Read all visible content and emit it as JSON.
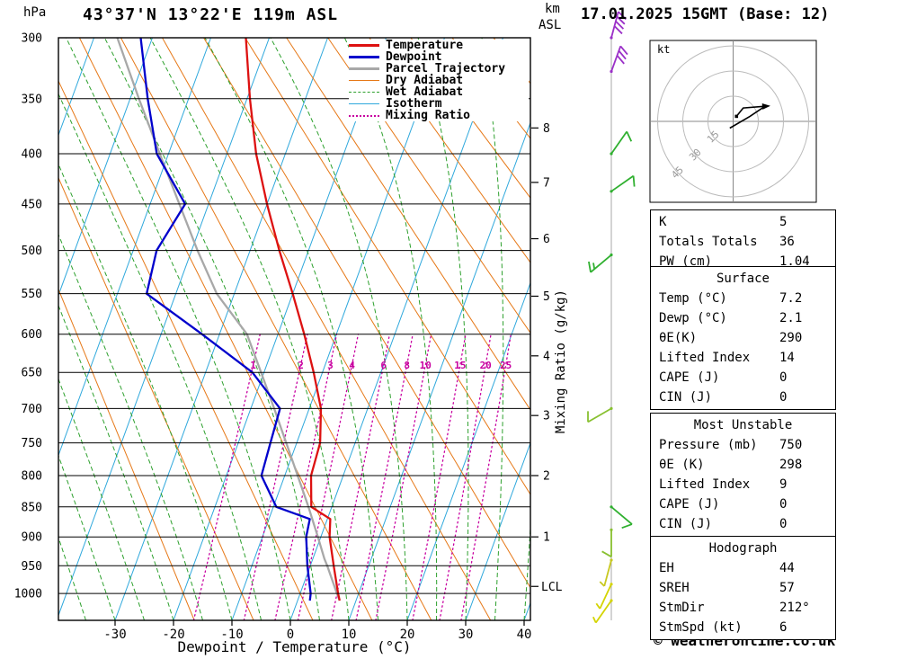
{
  "page_title": "43°37'N 13°22'E 119m ASL",
  "datetime": "17.01.2025 15GMT (Base: 12)",
  "footer": "© weatheronline.co.uk",
  "axes": {
    "pressure_unit": "hPa",
    "alt_unit_km": "km",
    "alt_unit_asl": "ASL",
    "xlabel": "Dewpoint / Temperature (°C)",
    "right_axis_label": "Mixing Ratio (g/kg)",
    "pressure_ticks_hpa": [
      300,
      350,
      400,
      450,
      500,
      550,
      600,
      650,
      700,
      750,
      800,
      850,
      900,
      950,
      1000
    ],
    "temp_ticks_c": [
      -30,
      -20,
      -10,
      0,
      10,
      20,
      30,
      40
    ],
    "km_ticks": [
      {
        "km": "8",
        "p": 376
      },
      {
        "km": "7",
        "p": 428
      },
      {
        "km": "6",
        "p": 487
      },
      {
        "km": "5",
        "p": 553
      },
      {
        "km": "4",
        "p": 628
      },
      {
        "km": "3",
        "p": 710
      },
      {
        "km": "2",
        "p": 800
      },
      {
        "km": "1",
        "p": 900
      }
    ],
    "lcl": {
      "label": "LCL",
      "p": 987
    }
  },
  "legend": [
    {
      "label": "Temperature",
      "color": "#dd1111",
      "style": "solid",
      "weight": 3
    },
    {
      "label": "Dewpoint",
      "color": "#0000cc",
      "style": "solid",
      "weight": 3
    },
    {
      "label": "Parcel Trajectory",
      "color": "#a8a8a8",
      "style": "solid",
      "weight": 3
    },
    {
      "label": "Dry Adiabat",
      "color": "#e67817",
      "style": "solid",
      "weight": 1
    },
    {
      "label": "Wet Adiabat",
      "color": "#2da02d",
      "style": "dashed",
      "weight": 1
    },
    {
      "label": "Isotherm",
      "color": "#2fa8dc",
      "style": "solid",
      "weight": 1
    },
    {
      "label": "Mixing Ratio",
      "color": "#c800a0",
      "style": "dotted",
      "weight": 2
    }
  ],
  "chart_data": {
    "type": "skewt_sounding",
    "title": "43°37'N 13°22'E 119m ASL",
    "valid": "17.01.2025 15GMT (Base: 12)",
    "pressure_axis_range_hpa": [
      300,
      1050
    ],
    "temp_axis_range_c": [
      -40,
      40
    ],
    "series": [
      {
        "name": "Temperature",
        "color": "#dd1111",
        "points_p_c": [
          [
            1013,
            7.2
          ],
          [
            1000,
            6.5
          ],
          [
            950,
            4
          ],
          [
            900,
            1.5
          ],
          [
            870,
            0.5
          ],
          [
            850,
            -3.5
          ],
          [
            800,
            -5.5
          ],
          [
            750,
            -6
          ],
          [
            700,
            -8
          ],
          [
            650,
            -11.5
          ],
          [
            600,
            -15.5
          ],
          [
            550,
            -20
          ],
          [
            500,
            -25
          ],
          [
            450,
            -30
          ],
          [
            400,
            -35
          ],
          [
            350,
            -39.5
          ],
          [
            300,
            -44
          ]
        ]
      },
      {
        "name": "Dewpoint",
        "color": "#0000cc",
        "points_p_c": [
          [
            1013,
            2.1
          ],
          [
            1000,
            1.8
          ],
          [
            950,
            -0.5
          ],
          [
            900,
            -2.5
          ],
          [
            870,
            -3
          ],
          [
            850,
            -9.5
          ],
          [
            800,
            -14
          ],
          [
            750,
            -14.5
          ],
          [
            700,
            -15
          ],
          [
            650,
            -22
          ],
          [
            600,
            -33
          ],
          [
            550,
            -45
          ],
          [
            500,
            -46
          ],
          [
            450,
            -44
          ],
          [
            400,
            -52
          ],
          [
            350,
            -57
          ],
          [
            300,
            -62
          ]
        ]
      },
      {
        "name": "Parcel Trajectory",
        "color": "#a8a8a8",
        "points_p_c": [
          [
            1013,
            7.2
          ],
          [
            1000,
            6.3
          ],
          [
            950,
            2.9
          ],
          [
            938,
            2
          ],
          [
            900,
            -0.5
          ],
          [
            850,
            -4
          ],
          [
            800,
            -7.8
          ],
          [
            750,
            -11.8
          ],
          [
            700,
            -16
          ],
          [
            650,
            -20.5
          ],
          [
            600,
            -25.3
          ],
          [
            550,
            -33
          ],
          [
            500,
            -39
          ],
          [
            450,
            -45
          ],
          [
            400,
            -51.5
          ],
          [
            350,
            -58.5
          ],
          [
            300,
            -66
          ]
        ]
      }
    ],
    "background_lines": {
      "isotherms_c": {
        "min": -80,
        "max": 40,
        "step": 10,
        "color": "#2fa8dc"
      },
      "dry_adiabats_c": {
        "min": -20,
        "max": 140,
        "step": 10,
        "color": "#e67817"
      },
      "wet_adiabats_c": {
        "min": -40,
        "max": 40,
        "step": 5,
        "color": "#2da02d"
      },
      "mixing_ratio_gkg": {
        "values": [
          1,
          2,
          3,
          4,
          6,
          8,
          10,
          15,
          20,
          25
        ],
        "color": "#c800a0"
      }
    },
    "wind_barbs": [
      {
        "p": 300,
        "kt": 40,
        "dir": 15,
        "color": "#9b30c8"
      },
      {
        "p": 327,
        "kt": 30,
        "dir": 20,
        "color": "#9b30c8"
      },
      {
        "p": 400,
        "kt": 10,
        "dir": 35,
        "color": "#30b030"
      },
      {
        "p": 437,
        "kt": 10,
        "dir": 55,
        "color": "#30b030"
      },
      {
        "p": 505,
        "kt": 15,
        "dir": 230,
        "color": "#30b030"
      },
      {
        "p": 700,
        "kt": 10,
        "dir": 240,
        "color": "#88c030"
      },
      {
        "p": 850,
        "kt": 10,
        "dir": 130,
        "color": "#30b030"
      },
      {
        "p": 888,
        "kt": 8,
        "dir": 180,
        "color": "#88c030"
      },
      {
        "p": 940,
        "kt": 5,
        "dir": 195,
        "color": "#c8c820"
      },
      {
        "p": 983,
        "kt": 5,
        "dir": 205,
        "color": "#d4d400"
      },
      {
        "p": 1013,
        "kt": 5,
        "dir": 215,
        "color": "#d4d400"
      }
    ]
  },
  "hodograph": {
    "unit_label": "kt",
    "rings_kt": [
      15,
      30,
      45
    ],
    "trace_kt": [
      [
        2,
        3
      ],
      [
        6,
        8
      ],
      [
        19,
        9
      ],
      [
        10,
        3
      ],
      [
        -2,
        -4
      ]
    ]
  },
  "table": {
    "sections": [
      {
        "header": null,
        "rows": [
          [
            "K",
            "5"
          ],
          [
            "Totals Totals",
            "36"
          ],
          [
            "PW (cm)",
            "1.04"
          ]
        ]
      },
      {
        "header": "Surface",
        "rows": [
          [
            "Temp (°C)",
            "7.2"
          ],
          [
            "Dewp (°C)",
            "2.1"
          ],
          [
            "θE(K)",
            "290"
          ],
          [
            "Lifted Index",
            "14"
          ],
          [
            "CAPE (J)",
            "0"
          ],
          [
            "CIN (J)",
            "0"
          ]
        ]
      },
      {
        "header": "Most Unstable",
        "rows": [
          [
            "Pressure (mb)",
            "750"
          ],
          [
            "θE (K)",
            "298"
          ],
          [
            "Lifted Index",
            "9"
          ],
          [
            "CAPE (J)",
            "0"
          ],
          [
            "CIN (J)",
            "0"
          ]
        ]
      },
      {
        "header": "Hodograph",
        "rows": [
          [
            "EH",
            "44"
          ],
          [
            "SREH",
            "57"
          ],
          [
            "StmDir",
            "212°"
          ],
          [
            "StmSpd (kt)",
            "6"
          ]
        ]
      }
    ]
  }
}
